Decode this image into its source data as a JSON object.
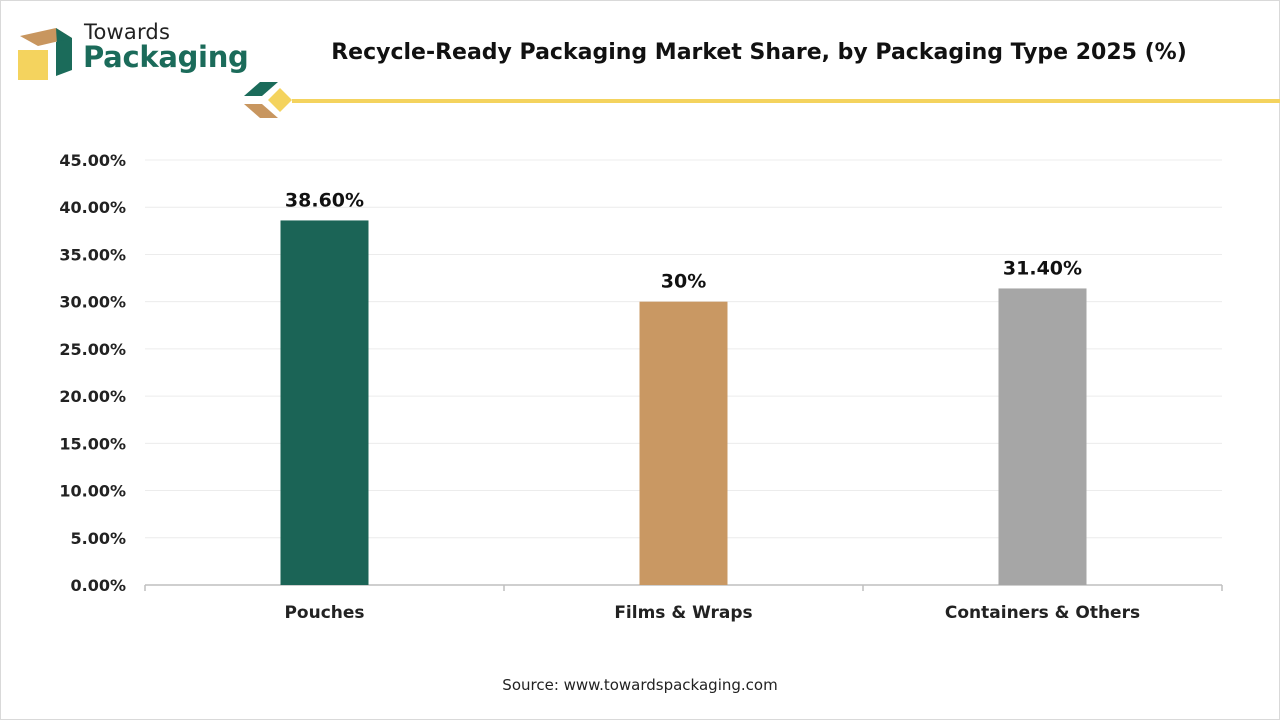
{
  "brand": {
    "line1": "Towards",
    "line2": "Packaging",
    "colors": {
      "green": "#1b6b5a",
      "tan": "#c8965f",
      "yellow": "#f4d35e"
    }
  },
  "source_text": "Source: www.towardspackaging.com",
  "chart_data": {
    "type": "bar",
    "title": "Recycle-Ready Packaging Market Share, by Packaging Type 2025 (%)",
    "categories": [
      "Pouches",
      "Films & Wraps",
      "Containers & Others"
    ],
    "values": [
      38.6,
      30,
      31.4
    ],
    "data_labels": [
      "38.60%",
      "30%",
      "31.40%"
    ],
    "colors": [
      "#1b6456",
      "#c99863",
      "#a6a6a6"
    ],
    "ylim": [
      0,
      45
    ],
    "y_ticks": [
      {
        "value": 0,
        "label": "0.00%"
      },
      {
        "value": 5,
        "label": "5.00%"
      },
      {
        "value": 10,
        "label": "10.00%"
      },
      {
        "value": 15,
        "label": "15.00%"
      },
      {
        "value": 20,
        "label": "20.00%"
      },
      {
        "value": 25,
        "label": "25.00%"
      },
      {
        "value": 30,
        "label": "30.00%"
      },
      {
        "value": 35,
        "label": "35.00%"
      },
      {
        "value": 40,
        "label": "40.00%"
      },
      {
        "value": 45,
        "label": "45.00%"
      }
    ],
    "grid": true,
    "legend": "none"
  }
}
